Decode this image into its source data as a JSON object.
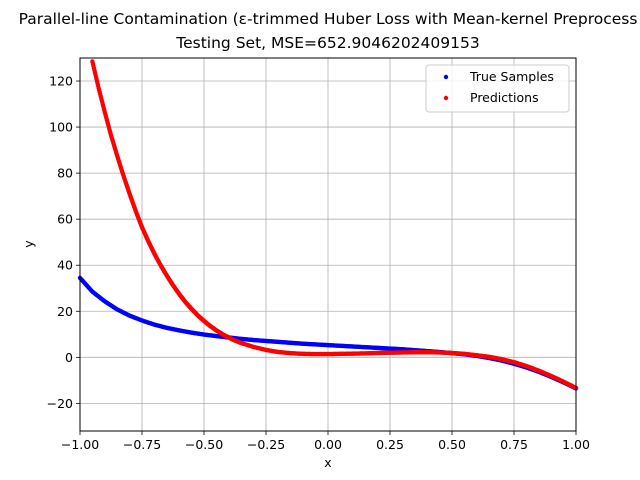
{
  "chart_data": {
    "type": "scatter",
    "title": "Parallel-line Contamination (ε-trimmed Huber Loss with Mean-kernel Preprocess",
    "subtitle": "Testing Set, MSE=652.9046202409153",
    "xlabel": "x",
    "ylabel": "y",
    "xlim": [
      -1.0,
      1.0
    ],
    "ylim": [
      -32,
      130
    ],
    "xticks": [
      "−1.00",
      "−0.75",
      "−0.50",
      "−0.25",
      "0.00",
      "0.25",
      "0.50",
      "0.75",
      "1.00"
    ],
    "yticks": [
      "−20",
      "0",
      "20",
      "40",
      "60",
      "80",
      "100",
      "120"
    ],
    "grid": true,
    "legend_position": "top-right",
    "series": [
      {
        "name": "True Samples",
        "color": "#0000ff",
        "x": [
          -1.0,
          -0.95,
          -0.9,
          -0.85,
          -0.8,
          -0.75,
          -0.7,
          -0.65,
          -0.6,
          -0.55,
          -0.5,
          -0.45,
          -0.4,
          -0.35,
          -0.3,
          -0.25,
          -0.2,
          -0.15,
          -0.1,
          -0.05,
          0.0,
          0.05,
          0.1,
          0.15,
          0.2,
          0.25,
          0.3,
          0.35,
          0.4,
          0.45,
          0.5,
          0.55,
          0.6,
          0.65,
          0.7,
          0.75,
          0.8,
          0.85,
          0.9,
          0.95,
          1.0
        ],
        "y": [
          34.5,
          28.5,
          24.3,
          20.8,
          18.1,
          16.0,
          14.2,
          12.8,
          11.7,
          10.7,
          9.9,
          9.2,
          8.6,
          8.0,
          7.5,
          7.1,
          6.7,
          6.3,
          5.9,
          5.6,
          5.3,
          5.0,
          4.7,
          4.4,
          4.1,
          3.8,
          3.5,
          3.1,
          2.7,
          2.3,
          1.8,
          1.3,
          0.6,
          -0.3,
          -1.4,
          -2.8,
          -4.4,
          -6.3,
          -8.5,
          -10.9,
          -13.5
        ]
      },
      {
        "name": "Predictions",
        "color": "#ff0000",
        "x": [
          -0.95,
          -0.925,
          -0.9,
          -0.875,
          -0.85,
          -0.825,
          -0.8,
          -0.775,
          -0.75,
          -0.725,
          -0.7,
          -0.675,
          -0.65,
          -0.625,
          -0.6,
          -0.575,
          -0.55,
          -0.525,
          -0.5,
          -0.475,
          -0.45,
          -0.425,
          -0.4,
          -0.375,
          -0.35,
          -0.3,
          -0.25,
          -0.2,
          -0.15,
          -0.1,
          -0.05,
          0.0,
          0.05,
          0.1,
          0.15,
          0.2,
          0.25,
          0.3,
          0.35,
          0.4,
          0.45,
          0.5,
          0.55,
          0.6,
          0.65,
          0.7,
          0.75,
          0.8,
          0.85,
          0.9,
          0.95,
          1.0
        ],
        "y": [
          128.5,
          117.0,
          106.5,
          96.5,
          87.5,
          79.0,
          71.0,
          63.5,
          56.5,
          50.5,
          45.0,
          40.0,
          35.5,
          31.3,
          27.5,
          24.0,
          21.0,
          18.2,
          15.8,
          13.6,
          11.7,
          10.0,
          8.6,
          7.3,
          6.2,
          4.5,
          3.2,
          2.3,
          1.8,
          1.5,
          1.4,
          1.4,
          1.5,
          1.6,
          1.7,
          1.9,
          2.0,
          2.1,
          2.2,
          2.2,
          2.1,
          1.9,
          1.5,
          0.9,
          0.2,
          -0.8,
          -2.1,
          -3.8,
          -5.8,
          -8.1,
          -10.6,
          -13.3
        ]
      }
    ]
  }
}
